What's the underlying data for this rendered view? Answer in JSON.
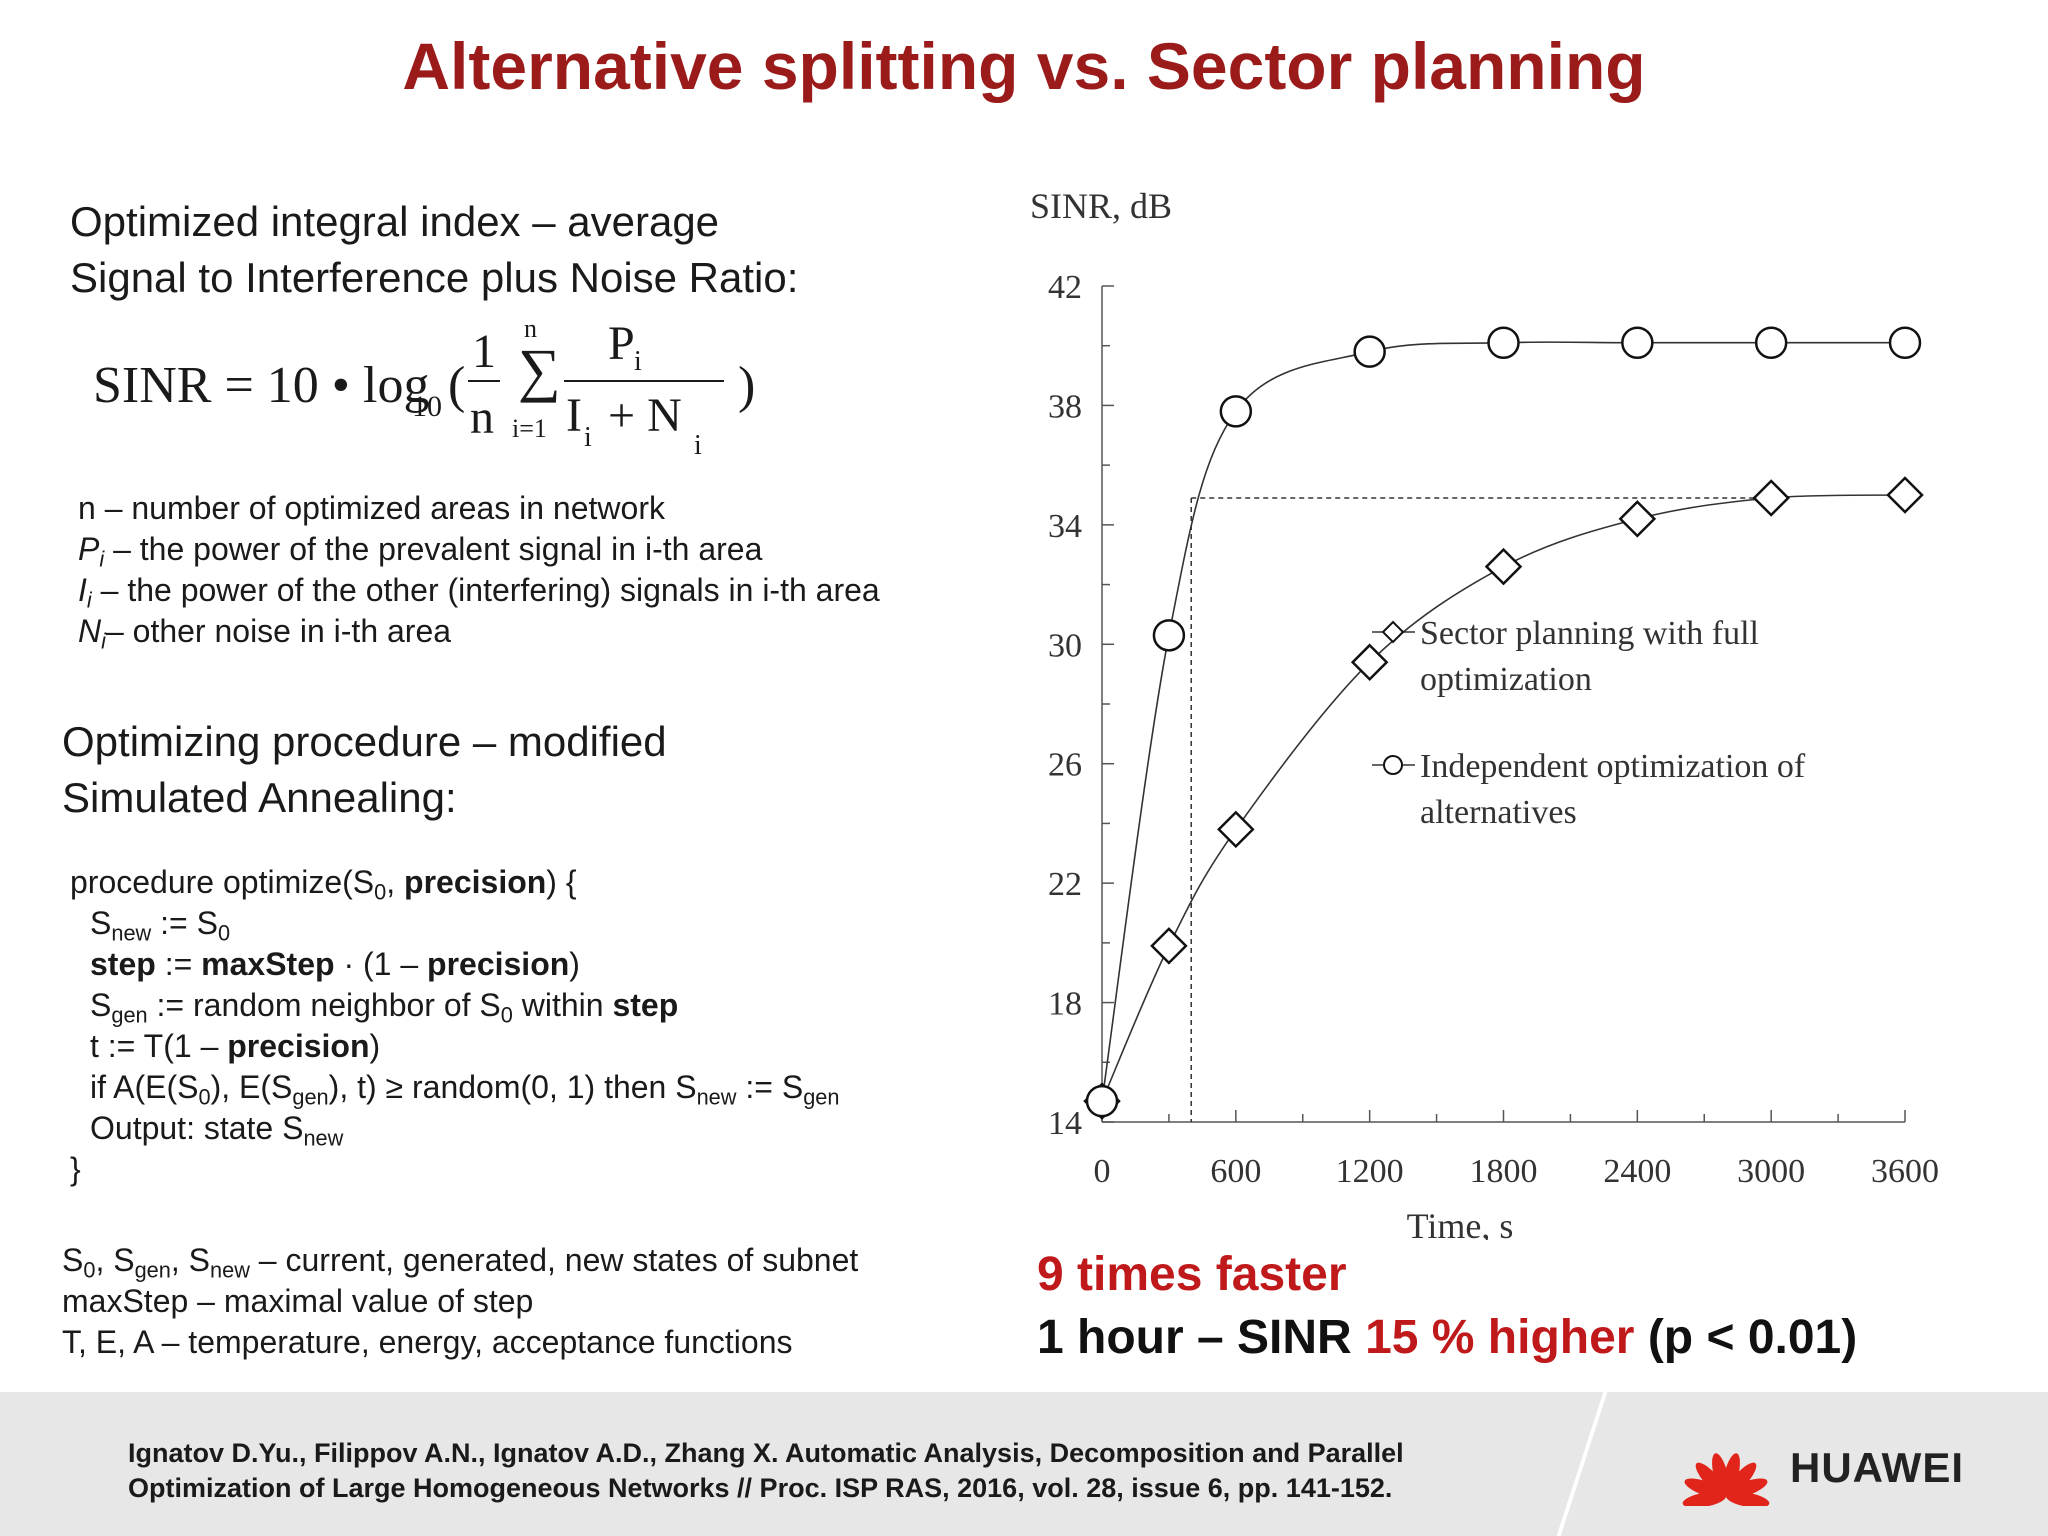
{
  "title": "Alternative splitting vs. Sector planning",
  "left": {
    "heading1": [
      "Optimized integral index – average",
      "Signal to Interference plus Noise Ratio:"
    ],
    "formula": {
      "lhs": "SINR = 10 • log",
      "log_base": "10",
      "open": "(",
      "frac_num": "1",
      "frac_den": "n",
      "sum_top": "n",
      "sum_sign": "∑",
      "sum_bottom": "i=1",
      "num": "P",
      "num_sub": "i",
      "den_I": "I",
      "den_I_sub": "i",
      "den_plus": "+ N",
      "den_N_sub": "i",
      "close": ")"
    },
    "definitions": [
      {
        "sym": "n",
        "sub": "",
        "text": " – number of optimized areas in network"
      },
      {
        "sym": "P",
        "sub": "i",
        "text": " – the power of the prevalent signal in i-th area"
      },
      {
        "sym": "I",
        "sub": "i",
        "text": " – the power of the other (interfering) signals in i-th area"
      },
      {
        "sym": "N",
        "sub": "i",
        "text": "– other noise in i-th area"
      }
    ],
    "heading2": [
      "Optimizing procedure – modified",
      "Simulated Annealing:"
    ],
    "code": {
      "l1": [
        "procedure optimize(S",
        "0",
        ", ",
        "precision",
        ") {"
      ],
      "l2": [
        "S",
        "new",
        " := S",
        "0"
      ],
      "l3": [
        "step",
        " := ",
        "maxStep",
        " · (1 – ",
        "precision",
        ")"
      ],
      "l4": [
        "S",
        "gen",
        " := random neighbor of S",
        "0",
        " within ",
        "step"
      ],
      "l5": [
        "t := T(1 – ",
        "precision",
        ")"
      ],
      "l6": [
        "if A(E(S",
        "0",
        "), E(S",
        "gen",
        "), t) ≥ random(0, 1) then S",
        "new",
        " := S",
        "gen"
      ],
      "l7": [
        "Output: state S",
        "new"
      ],
      "l8": "}"
    },
    "notes": {
      "n1": [
        "S",
        "0",
        ", S",
        "gen",
        ", S",
        "new",
        " – current, generated, new states of subnet"
      ],
      "n2": "maxStep – maximal value of step",
      "n3": "T, E, A – temperature, energy, acceptance functions"
    }
  },
  "results": {
    "line1": "9 times faster",
    "line2_a": "1 hour – SINR ",
    "line2_b": "15 % higher",
    "line2_c": " (p < 0.01)"
  },
  "footer": {
    "citation": [
      "Ignatov D.Yu., Filippov A.N., Ignatov A.D., Zhang X. Automatic Analysis, Decomposition and Parallel",
      "Optimization of Large Homogeneous Networks // Proc. ISP RAS, 2016, vol. 28, issue 6, pp. 141-152."
    ],
    "logo_text": "HUAWEI"
  },
  "colors": {
    "title": "#9b1b1b",
    "highlight": "#c0191b",
    "footer_bg": "#e7e7e7",
    "logo_red": "#e1251b"
  },
  "chart_data": {
    "type": "line",
    "ylabel": "SINR, dB",
    "xlabel": "Time, s",
    "xlim": [
      0,
      3600
    ],
    "ylim": [
      14,
      42
    ],
    "xticks": [
      0,
      600,
      1200,
      1800,
      2400,
      3000,
      3600
    ],
    "yticks": [
      14,
      18,
      22,
      26,
      30,
      34,
      38,
      42
    ],
    "grid": false,
    "legend_position": "right-middle",
    "series": [
      {
        "name": "Sector planning with full optimization",
        "legend_lines": [
          "Sector planning with full",
          "optimization"
        ],
        "marker": "diamond",
        "x": [
          0,
          300,
          600,
          1200,
          1800,
          2400,
          3000,
          3600
        ],
        "y": [
          14.7,
          19.9,
          23.8,
          29.4,
          32.6,
          34.2,
          34.9,
          35.0
        ]
      },
      {
        "name": "Independent optimization of alternatives",
        "legend_lines": [
          "Independent optimization of",
          "alternatives"
        ],
        "marker": "circle",
        "x": [
          0,
          300,
          600,
          1200,
          1800,
          2400,
          3000,
          3600
        ],
        "y": [
          14.7,
          30.3,
          37.8,
          39.8,
          40.1,
          40.1,
          40.1,
          40.1
        ]
      }
    ],
    "reference": {
      "x": 400,
      "y": 34.9
    }
  }
}
